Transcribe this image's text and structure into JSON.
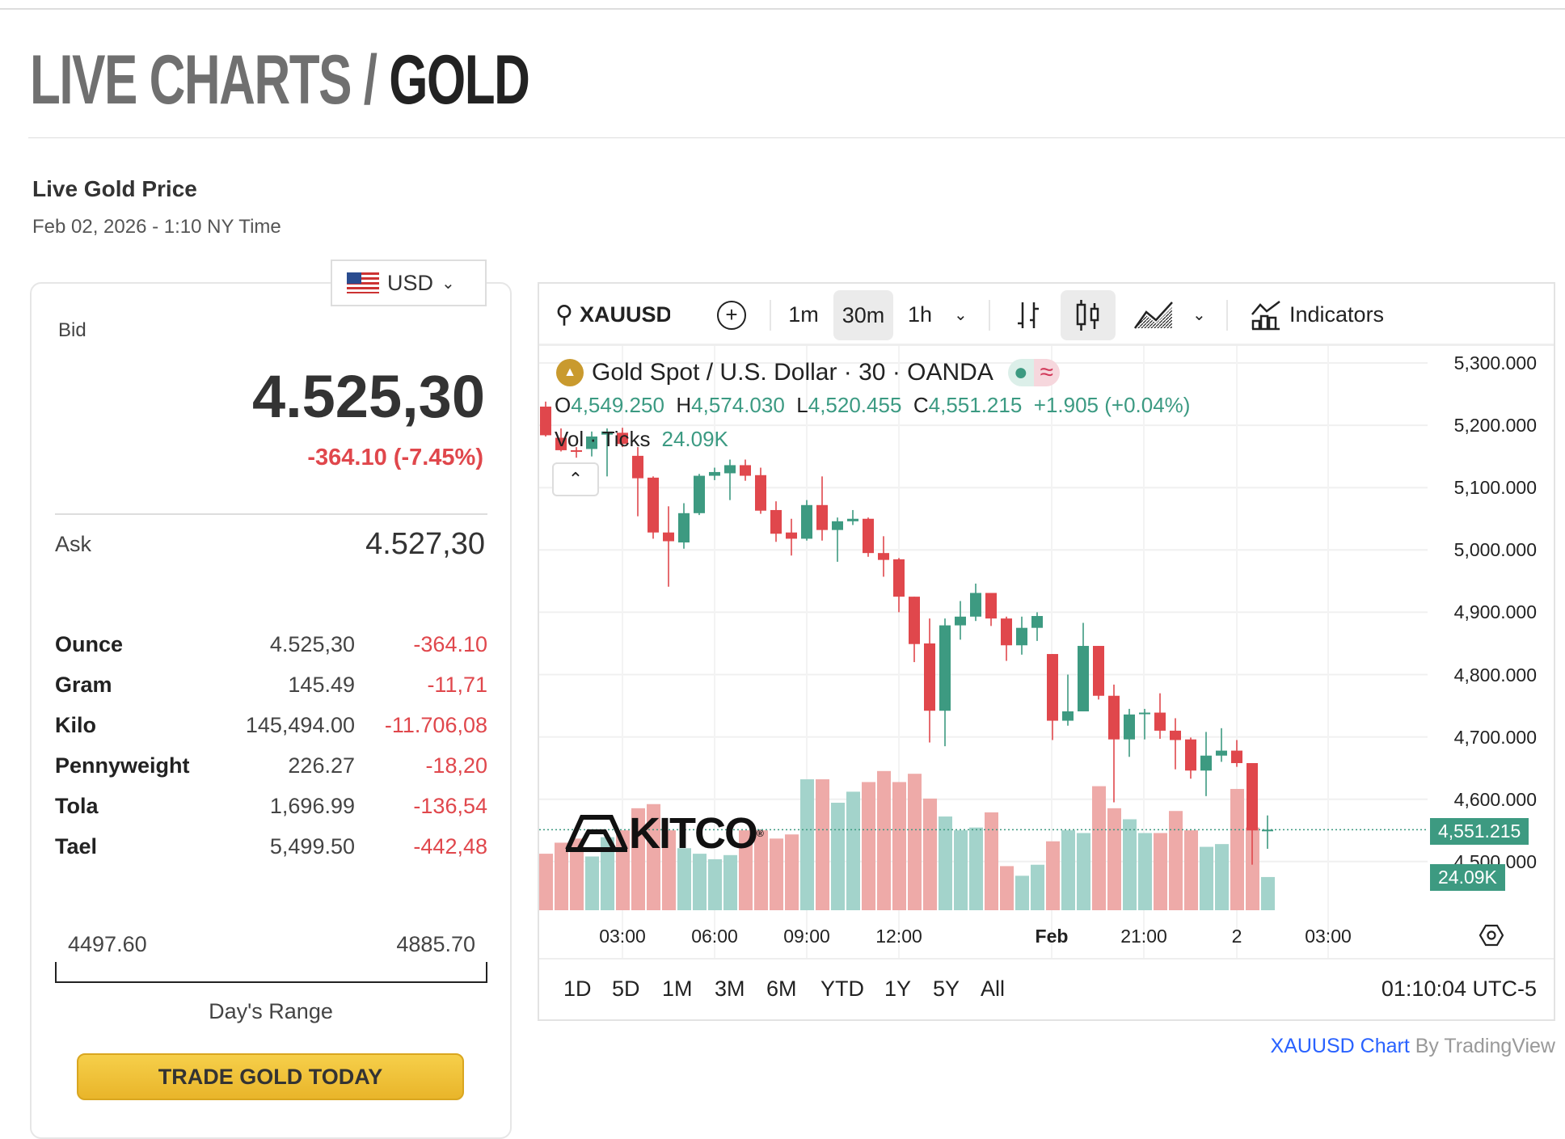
{
  "header": {
    "title_a": "LIVE CHARTS / ",
    "title_b": "GOLD"
  },
  "live": {
    "heading": "Live Gold Price",
    "date": "Feb 02, 2026 - 1:10 NY Time"
  },
  "currency": {
    "selected": "USD"
  },
  "quote": {
    "bid_label": "Bid",
    "bid": "4.525,30",
    "change": "-364.10 (-7.45%)",
    "ask_label": "Ask",
    "ask": "4.527,30"
  },
  "units": [
    {
      "name": "Ounce",
      "value": "4.525,30",
      "change": "-364.10"
    },
    {
      "name": "Gram",
      "value": "145.49",
      "change": "-11,71"
    },
    {
      "name": "Kilo",
      "value": "145,494.00",
      "change": "-11.706,08"
    },
    {
      "name": "Pennyweight",
      "value": "226.27",
      "change": "-18,20"
    },
    {
      "name": "Tola",
      "value": "1,696.99",
      "change": "-136,54"
    },
    {
      "name": "Tael",
      "value": "5,499.50",
      "change": "-442,48"
    }
  ],
  "range": {
    "low": "4497.60",
    "high": "4885.70",
    "label": "Day's Range",
    "position": 0.07
  },
  "trade_button": "TRADE GOLD TODAY",
  "toolbar": {
    "symbol": "XAUUSD",
    "intervals": [
      "1m",
      "30m",
      "1h"
    ],
    "active_interval": "30m",
    "indicators": "Indicators"
  },
  "legend": {
    "title": "Gold Spot / U.S. Dollar · 30 · OANDA",
    "o_label": "O",
    "o": "4,549.250",
    "h_label": "H",
    "h": "4,574.030",
    "l_label": "L",
    "l": "4,520.455",
    "c_label": "C",
    "c": "4,551.215",
    "change": "+1.905 (+0.04%)",
    "vol_label": "Vol · Ticks",
    "vol": "24.09K"
  },
  "logo": "KITCO",
  "price_axis": [
    "5,300.000",
    "5,200.000",
    "5,100.000",
    "5,000.000",
    "4,900.000",
    "4,800.000",
    "4,700.000",
    "4,600.000",
    "4,500.000"
  ],
  "last_price_tag": "4,551.215",
  "vol_tag": "24.09K",
  "time_axis": [
    "03:00",
    "06:00",
    "09:00",
    "12:00",
    "Feb",
    "21:00",
    "2",
    "03:00"
  ],
  "ranges": [
    "1D",
    "5D",
    "1M",
    "3M",
    "6M",
    "YTD",
    "1Y",
    "5Y",
    "All"
  ],
  "clock": "01:10:04 UTC-5",
  "attribution": {
    "link": "XAUUSD Chart",
    "rest": " By TradingView"
  },
  "colors": {
    "up": "#3d9a81",
    "down": "#e0474c",
    "up_vol": "#a3d3cb",
    "down_vol": "#eeaaa8"
  },
  "chart_data": {
    "type": "candlestick",
    "ylim": [
      4450,
      5330
    ],
    "ohlc": [
      [
        5230,
        5238,
        5182,
        5184
      ],
      [
        5180,
        5195,
        5158,
        5160
      ],
      [
        5160,
        5165,
        5148,
        5158
      ],
      [
        5162,
        5190,
        5150,
        5182
      ],
      [
        5185,
        5195,
        5118,
        5190
      ],
      [
        5188,
        5196,
        5165,
        5170
      ],
      [
        5151,
        5165,
        5054,
        5115
      ],
      [
        5116,
        5118,
        5018,
        5028
      ],
      [
        5028,
        5070,
        4941,
        5014
      ],
      [
        5012,
        5075,
        5002,
        5059
      ],
      [
        5059,
        5122,
        5056,
        5119
      ],
      [
        5119,
        5132,
        5112,
        5125
      ],
      [
        5123,
        5145,
        5080,
        5136
      ],
      [
        5136,
        5145,
        5111,
        5119
      ],
      [
        5120,
        5132,
        5058,
        5063
      ],
      [
        5064,
        5078,
        5013,
        5026
      ],
      [
        5028,
        5050,
        4991,
        5018
      ],
      [
        5018,
        5080,
        5015,
        5072
      ],
      [
        5072,
        5118,
        5015,
        5032
      ],
      [
        5032,
        5052,
        4981,
        5046
      ],
      [
        5046,
        5064,
        5040,
        5050
      ],
      [
        5050,
        5052,
        4989,
        4995
      ],
      [
        4995,
        5022,
        4957,
        4984
      ],
      [
        4985,
        4987,
        4900,
        4925
      ],
      [
        4925,
        4925,
        4820,
        4849
      ],
      [
        4850,
        4890,
        4691,
        4742
      ],
      [
        4742,
        4890,
        4685,
        4879
      ],
      [
        4879,
        4918,
        4856,
        4893
      ],
      [
        4893,
        4946,
        4886,
        4931
      ],
      [
        4931,
        4931,
        4878,
        4890
      ],
      [
        4890,
        4893,
        4822,
        4847
      ],
      [
        4847,
        4893,
        4832,
        4875
      ],
      [
        4875,
        4900,
        4854,
        4894
      ],
      [
        4833,
        4833,
        4695,
        4726
      ],
      [
        4726,
        4800,
        4718,
        4741
      ],
      [
        4741,
        4883,
        4741,
        4846
      ],
      [
        4846,
        4846,
        4760,
        4766
      ],
      [
        4766,
        4784,
        4595,
        4696
      ],
      [
        4696,
        4745,
        4668,
        4736
      ],
      [
        4737,
        4745,
        4696,
        4739
      ],
      [
        4739,
        4770,
        4697,
        4710
      ],
      [
        4710,
        4730,
        4648,
        4695
      ],
      [
        4696,
        4699,
        4633,
        4646
      ],
      [
        4646,
        4708,
        4605,
        4670
      ],
      [
        4670,
        4714,
        4660,
        4678
      ],
      [
        4678,
        4695,
        4652,
        4658
      ],
      [
        4658,
        4658,
        4495,
        4550
      ],
      [
        4549.25,
        4574.03,
        4520.455,
        4551.215
      ]
    ],
    "volume_k": [
      41,
      49,
      52,
      39,
      53,
      58,
      74,
      77,
      58,
      45,
      41,
      37,
      40,
      58,
      58,
      52,
      55,
      95,
      95,
      78,
      86,
      93,
      101,
      93,
      99,
      81,
      68,
      58,
      60,
      71,
      32,
      25,
      33,
      50,
      58,
      56,
      90,
      74,
      66,
      56,
      56,
      72,
      58,
      46,
      48,
      88,
      60,
      24.09
    ]
  }
}
